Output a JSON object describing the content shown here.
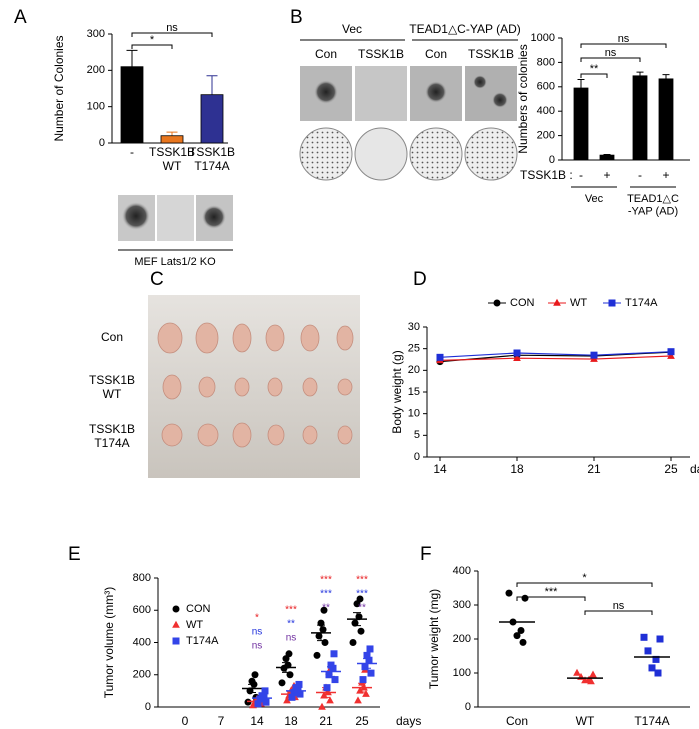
{
  "chart_data": [
    {
      "panel": "A",
      "type": "bar",
      "ylabel": "Number of  Colonies",
      "categories": [
        "-",
        "TSSK1B\nWT",
        "TSSK1B\nT174A"
      ],
      "values": [
        210,
        20,
        133
      ],
      "errors": [
        45,
        10,
        52
      ],
      "colors": [
        "#000000",
        "#e8761e",
        "#2e3192"
      ],
      "ylim": [
        0,
        300
      ],
      "yticks": [
        0,
        100,
        200,
        300
      ],
      "significance": [
        "*",
        "ns"
      ],
      "image_caption": "MEF Lats1/2 KO"
    },
    {
      "panel": "B",
      "type": "bar",
      "ylabel": "Numbers of colonies",
      "category_label": "TSSK1B :",
      "categories": [
        "-",
        "+",
        "-",
        "+"
      ],
      "groups": [
        "Vec",
        "TEAD1△C\n-YAP (AD)"
      ],
      "values": [
        590,
        40,
        690,
        665
      ],
      "errors": [
        70,
        5,
        30,
        35
      ],
      "color": "#000000",
      "ylim": [
        0,
        1000
      ],
      "yticks": [
        0,
        200,
        400,
        600,
        800,
        1000
      ],
      "significance": [
        "**",
        "ns",
        "ns"
      ],
      "image_groups": [
        "Vec",
        "TEAD1△C-YAP (AD)"
      ],
      "image_columns": [
        "Con",
        "TSSK1B",
        "Con",
        "TSSK1B"
      ]
    },
    {
      "panel": "C",
      "type": "image",
      "row_labels": [
        "Con",
        "TSSK1B\nWT",
        "TSSK1B\nT174A"
      ]
    },
    {
      "panel": "D",
      "type": "line",
      "ylabel": "Body weight (g)",
      "xlabel": "days",
      "categories": [
        "14",
        "18",
        "21",
        "25"
      ],
      "series": [
        {
          "name": "CON",
          "color": "#000000",
          "marker": "circle",
          "values": [
            22,
            23.5,
            23.3,
            24.2
          ]
        },
        {
          "name": "WT",
          "color": "#e8191c",
          "marker": "triangle",
          "values": [
            22.3,
            22.8,
            22.6,
            23.3
          ]
        },
        {
          "name": "T174A",
          "color": "#1f2fd6",
          "marker": "square",
          "values": [
            23,
            24,
            23.5,
            24.3
          ]
        }
      ],
      "ylim": [
        0,
        30
      ],
      "yticks": [
        0,
        5,
        10,
        15,
        20,
        25,
        30
      ]
    },
    {
      "panel": "E",
      "type": "scatter",
      "ylabel": "Tumor volume (mm³)",
      "xlabel": "days",
      "categories": [
        "0",
        "7",
        "14",
        "18",
        "21",
        "25"
      ],
      "series": [
        {
          "name": "CON",
          "color": "#000000",
          "marker": "circle",
          "values": [
            null,
            null,
            115,
            245,
            460,
            545
          ],
          "sem": [
            null,
            null,
            25,
            30,
            48,
            40
          ],
          "points": [
            [],
            [],
            [
              30,
              60,
              100,
              140,
              160,
              200
            ],
            [
              150,
              200,
              240,
              260,
              300,
              330
            ],
            [
              320,
              400,
              440,
              480,
              520,
              600
            ],
            [
              400,
              470,
              520,
              560,
              640,
              670
            ]
          ]
        },
        {
          "name": "WT",
          "color": "#f03030",
          "marker": "triangle",
          "values": [
            null,
            null,
            35,
            80,
            90,
            120
          ],
          "sem": [
            null,
            null,
            8,
            13,
            30,
            27
          ],
          "points": [
            [],
            [],
            [
              10,
              20,
              30,
              40,
              50,
              60
            ],
            [
              40,
              60,
              70,
              80,
              100,
              130
            ],
            [
              0,
              40,
              70,
              90,
              120,
              220
            ],
            [
              40,
              80,
              100,
              120,
              150,
              230
            ]
          ]
        },
        {
          "name": "T174A",
          "color": "#3344e8",
          "marker": "square",
          "values": [
            null,
            null,
            55,
            100,
            220,
            270
          ],
          "sem": [
            null,
            null,
            12,
            12,
            30,
            30
          ],
          "points": [
            [],
            [],
            [
              20,
              30,
              50,
              60,
              70,
              100
            ],
            [
              60,
              80,
              90,
              110,
              120,
              140
            ],
            [
              120,
              170,
              200,
              240,
              260,
              330
            ],
            [
              170,
              210,
              250,
              290,
              320,
              360
            ]
          ]
        }
      ],
      "significance": [
        {
          "color": "#e8191c",
          "labels": [
            null,
            null,
            "*",
            "***",
            "***",
            "***"
          ]
        },
        {
          "color": "#2233dd",
          "labels": [
            null,
            null,
            "ns",
            "**",
            "***",
            "***"
          ]
        },
        {
          "color": "#7030a0",
          "labels": [
            null,
            null,
            "ns",
            "ns",
            "**",
            "**"
          ]
        }
      ],
      "ylim": [
        0,
        800
      ],
      "yticks": [
        0,
        200,
        400,
        600,
        800
      ]
    },
    {
      "panel": "F",
      "type": "scatter",
      "ylabel": "Tumor weight (mg)",
      "categories": [
        "Con",
        "WT",
        "T174A"
      ],
      "values": [
        250,
        85,
        147
      ],
      "points": [
        [
          335,
          320,
          250,
          225,
          210,
          190
        ],
        [
          100,
          95,
          88,
          80,
          78,
          75
        ],
        [
          205,
          200,
          165,
          140,
          115,
          100
        ]
      ],
      "colors": [
        "#000000",
        "#f03030",
        "#1f2fd6"
      ],
      "markers": [
        "circle",
        "triangle",
        "square"
      ],
      "significance": [
        "***",
        "ns",
        "*"
      ],
      "ylim": [
        0,
        400
      ],
      "yticks": [
        0,
        100,
        200,
        300,
        400
      ]
    }
  ]
}
